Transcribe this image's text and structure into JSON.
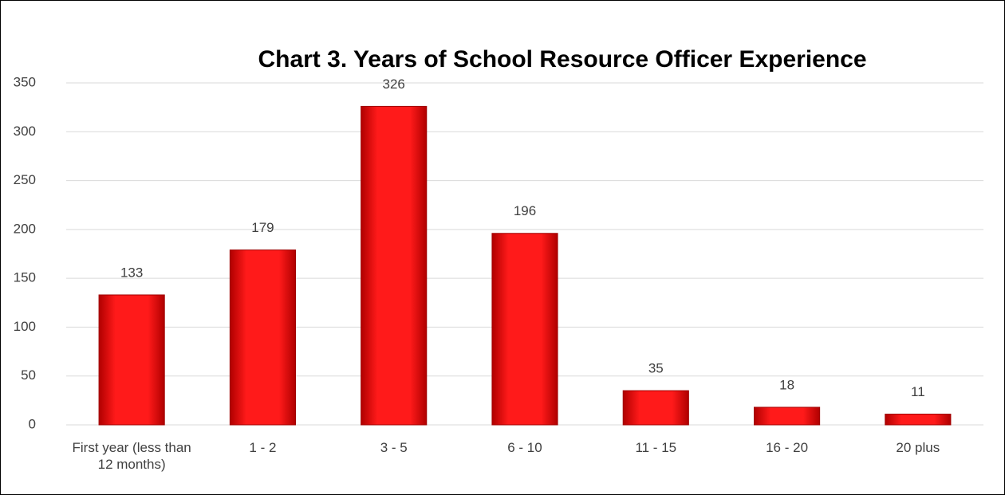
{
  "chart_data": {
    "type": "bar",
    "title": "Chart 3. Years of School Resource Officer Experience",
    "categories": [
      "First year (less than 12 months)",
      "1 - 2",
      "3 - 5",
      "6 - 10",
      "11 - 15",
      "16 - 20",
      "20 plus"
    ],
    "values": [
      133,
      179,
      326,
      196,
      35,
      18,
      11
    ],
    "color": "#e00000",
    "ylim": [
      0,
      350
    ],
    "yticks": [
      0,
      50,
      100,
      150,
      200,
      250,
      300,
      350
    ],
    "grid": true
  }
}
